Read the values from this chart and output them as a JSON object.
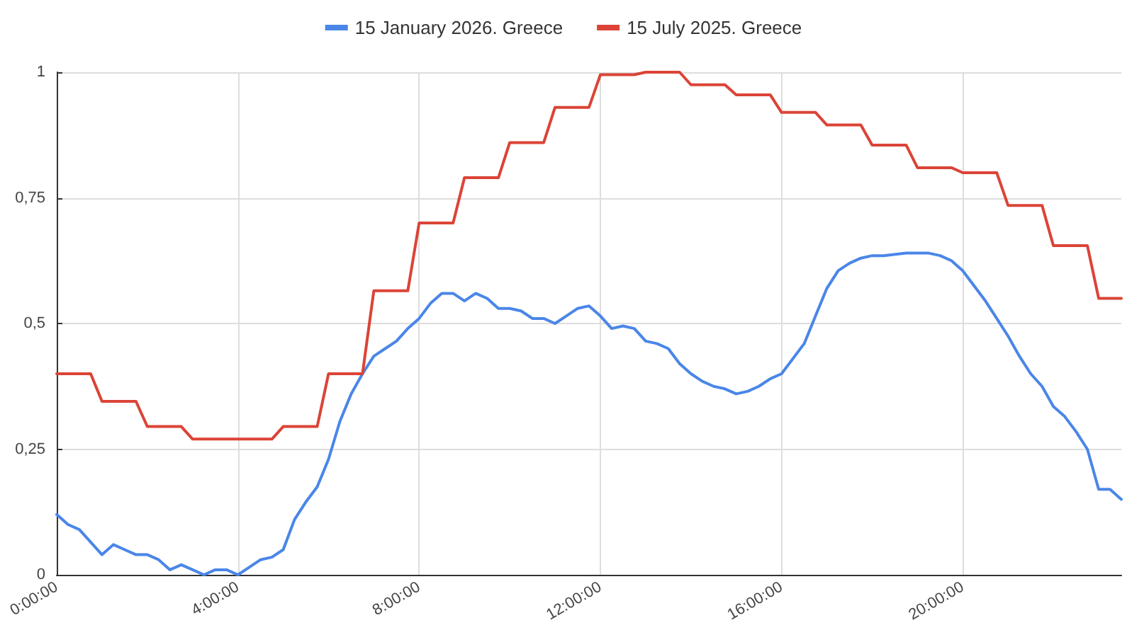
{
  "chart_data": {
    "type": "line",
    "xlim": [
      0,
      23.5
    ],
    "xticks": [
      {
        "value": 0,
        "label": "0:00:00"
      },
      {
        "value": 4,
        "label": "4:00:00"
      },
      {
        "value": 8,
        "label": "8:00:00"
      },
      {
        "value": 12,
        "label": "12:00:00"
      },
      {
        "value": 16,
        "label": "16:00:00"
      },
      {
        "value": 20,
        "label": "20:00:00"
      }
    ],
    "ylim": [
      0,
      1
    ],
    "yticks": [
      0,
      {
        "value": 0.25,
        "label": "0,25"
      },
      {
        "value": 0.5,
        "label": "0,5"
      },
      {
        "value": 0.75,
        "label": "0,75"
      },
      1
    ],
    "grid": true,
    "legend": "top",
    "marker": "none",
    "series": [
      {
        "name": "15 January 2026. Greece",
        "color": "#4a86e8",
        "x": [
          0,
          0.25,
          0.5,
          1,
          1.25,
          1.5,
          1.75,
          2,
          2.25,
          2.5,
          2.75,
          3,
          3.25,
          3.5,
          3.75,
          4,
          4.25,
          4.5,
          4.75,
          5,
          5.25,
          5.5,
          5.75,
          6,
          6.25,
          6.5,
          6.75,
          7,
          7.25,
          7.5,
          7.75,
          8,
          8.25,
          8.5,
          8.75,
          9,
          9.25,
          9.5,
          9.75,
          10,
          10.25,
          10.5,
          10.75,
          11,
          11.25,
          11.5,
          11.75,
          12,
          12.25,
          12.5,
          12.75,
          13,
          13.25,
          13.5,
          13.75,
          14,
          14.25,
          14.5,
          14.75,
          15,
          15.25,
          15.5,
          15.75,
          16,
          16.5,
          16.75,
          17,
          17.25,
          17.5,
          17.75,
          18,
          18.25,
          18.75,
          19,
          19.25,
          19.5,
          19.75,
          20,
          20.25,
          20.5,
          20.75,
          21,
          21.25,
          21.5,
          21.75,
          22,
          22.25,
          22.5,
          22.75,
          23,
          23.25,
          23.5
        ],
        "values": [
          0.12,
          0.1,
          0.09,
          0.04,
          0.06,
          0.05,
          0.04,
          0.04,
          0.03,
          0.01,
          0.02,
          0.01,
          0,
          0.01,
          0.01,
          0,
          0.015,
          0.03,
          0.035,
          0.05,
          0.11,
          0.145,
          0.175,
          0.23,
          0.305,
          0.36,
          0.4,
          0.435,
          0.45,
          0.465,
          0.49,
          0.51,
          0.54,
          0.56,
          0.56,
          0.545,
          0.56,
          0.55,
          0.53,
          0.53,
          0.525,
          0.51,
          0.51,
          0.5,
          0.515,
          0.53,
          0.535,
          0.515,
          0.49,
          0.495,
          0.49,
          0.465,
          0.46,
          0.45,
          0.42,
          0.4,
          0.385,
          0.375,
          0.37,
          0.36,
          0.365,
          0.375,
          0.39,
          0.4,
          0.46,
          0.515,
          0.57,
          0.605,
          0.62,
          0.63,
          0.635,
          0.635,
          0.64,
          0.64,
          0.64,
          0.635,
          0.625,
          0.605,
          0.575,
          0.545,
          0.51,
          0.475,
          0.435,
          0.4,
          0.375,
          0.335,
          0.315,
          0.285,
          0.25,
          0.17,
          0.17,
          0.15
        ]
      },
      {
        "name": "15 July 2025. Greece",
        "color": "#db4437",
        "x": [
          0,
          0.75,
          1,
          1.75,
          2,
          2.75,
          3,
          3.75,
          4,
          4.75,
          5,
          5.75,
          6,
          6.75,
          7,
          7.75,
          8,
          8.75,
          9,
          9.75,
          10,
          10.75,
          11,
          11.75,
          12,
          12.75,
          13,
          13.75,
          14,
          14.75,
          15,
          15.75,
          16,
          16.75,
          17,
          17.75,
          18,
          18.75,
          19,
          19.75,
          20,
          20.75,
          21,
          21.75,
          22,
          22.75,
          23,
          23.5
        ],
        "values": [
          0.4,
          0.4,
          0.345,
          0.345,
          0.295,
          0.295,
          0.27,
          0.27,
          0.27,
          0.27,
          0.295,
          0.295,
          0.4,
          0.4,
          0.565,
          0.565,
          0.7,
          0.7,
          0.79,
          0.79,
          0.86,
          0.86,
          0.93,
          0.93,
          0.995,
          0.995,
          1,
          1,
          0.975,
          0.975,
          0.955,
          0.955,
          0.92,
          0.92,
          0.895,
          0.895,
          0.855,
          0.855,
          0.81,
          0.81,
          0.8,
          0.8,
          0.735,
          0.735,
          0.655,
          0.655,
          0.55,
          0.55
        ]
      }
    ]
  }
}
